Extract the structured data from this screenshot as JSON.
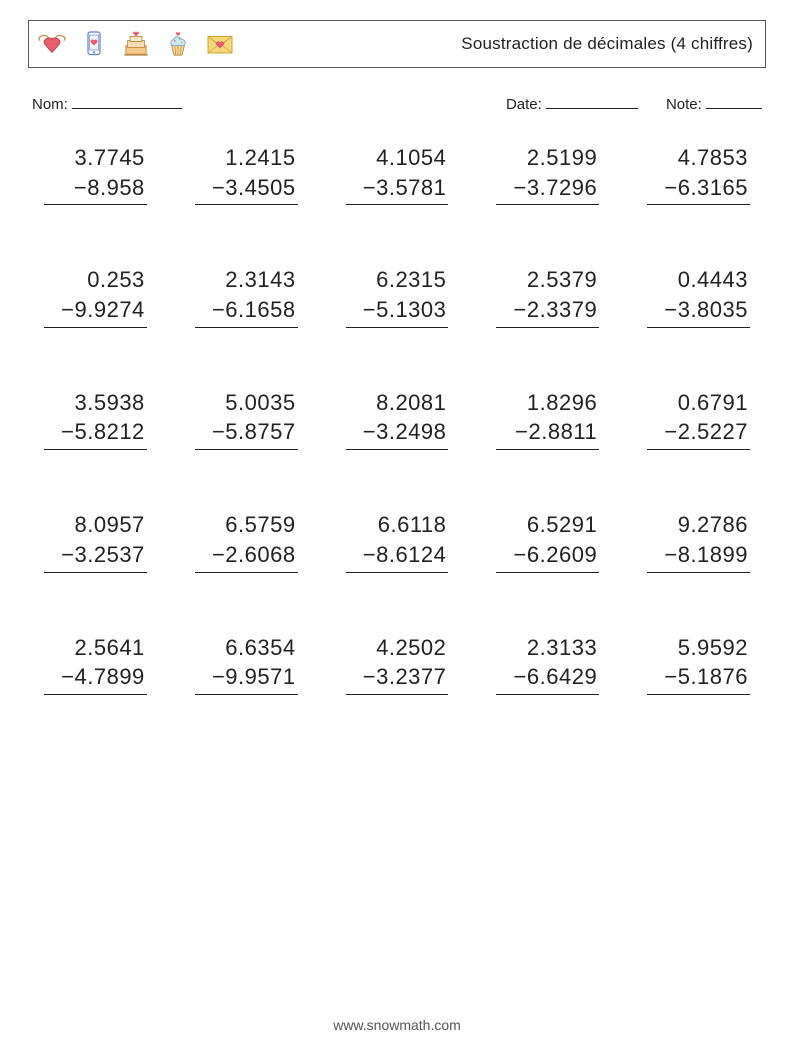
{
  "header": {
    "title": "Soustraction de décimales (4 chiffres)"
  },
  "meta": {
    "name_label": "Nom:",
    "date_label": "Date:",
    "note_label": "Note:",
    "name_blank_width": 110,
    "date_blank_width": 92,
    "note_blank_width": 56
  },
  "layout": {
    "cols": 5,
    "rows": 5
  },
  "problems": [
    {
      "a": "3.7745",
      "b": "8.958"
    },
    {
      "a": "1.2415",
      "b": "3.4505"
    },
    {
      "a": "4.1054",
      "b": "3.5781"
    },
    {
      "a": "2.5199",
      "b": "3.7296"
    },
    {
      "a": "4.7853",
      "b": "6.3165"
    },
    {
      "a": "0.253",
      "b": "9.9274"
    },
    {
      "a": "2.3143",
      "b": "6.1658"
    },
    {
      "a": "6.2315",
      "b": "5.1303"
    },
    {
      "a": "2.5379",
      "b": "2.3379"
    },
    {
      "a": "0.4443",
      "b": "3.8035"
    },
    {
      "a": "3.5938",
      "b": "5.8212"
    },
    {
      "a": "5.0035",
      "b": "5.8757"
    },
    {
      "a": "8.2081",
      "b": "3.2498"
    },
    {
      "a": "1.8296",
      "b": "2.8811"
    },
    {
      "a": "0.6791",
      "b": "2.5227"
    },
    {
      "a": "8.0957",
      "b": "3.2537"
    },
    {
      "a": "6.5759",
      "b": "2.6068"
    },
    {
      "a": "6.6118",
      "b": "8.6124"
    },
    {
      "a": "6.5291",
      "b": "6.2609"
    },
    {
      "a": "9.2786",
      "b": "8.1899"
    },
    {
      "a": "2.5641",
      "b": "4.7899"
    },
    {
      "a": "6.6354",
      "b": "9.9571"
    },
    {
      "a": "4.2502",
      "b": "3.2377"
    },
    {
      "a": "2.3133",
      "b": "6.6429"
    },
    {
      "a": "5.9592",
      "b": "5.1876"
    }
  ],
  "operator": "−",
  "footer": {
    "text": "www.snowmath.com"
  },
  "colors": {
    "text": "#222222",
    "border": "#555555",
    "background": "#ffffff",
    "footer": "#555555"
  },
  "typography": {
    "title_fontsize": 17,
    "meta_fontsize": 15,
    "problem_fontsize": 22,
    "footer_fontsize": 14
  }
}
